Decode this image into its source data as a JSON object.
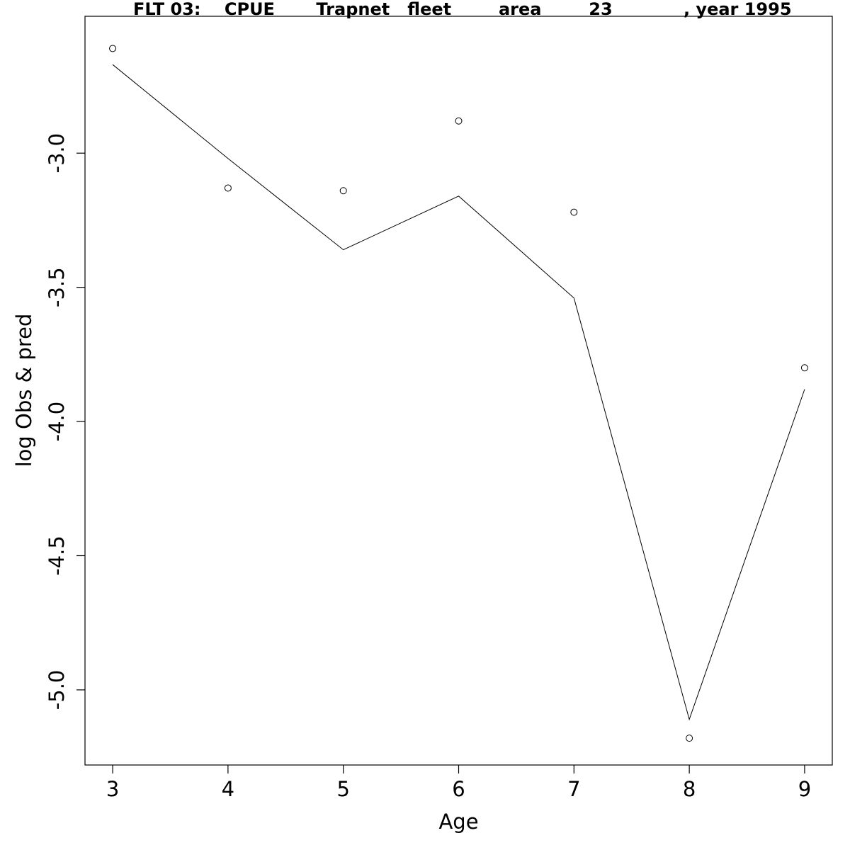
{
  "chart_data": {
    "type": "line",
    "title": "FLT 03:    CPUE       Trapnet   fleet        area        23            , year 1995",
    "xlabel": "Age",
    "ylabel": "log Obs & pred",
    "x": [
      3,
      4,
      5,
      6,
      7,
      8,
      9
    ],
    "x_ticks": [
      "3",
      "4",
      "5",
      "6",
      "7",
      "8",
      "9"
    ],
    "y_ticks": [
      "-3.0",
      "-3.5",
      "-4.0",
      "-4.5",
      "-5.0"
    ],
    "xlim": [
      2.76,
      9.24
    ],
    "ylim": [
      -5.28,
      -2.49
    ],
    "series": [
      {
        "kind": "points",
        "marker": "open-circle",
        "values": [
          -2.61,
          -3.13,
          -3.14,
          -2.88,
          -3.22,
          -5.18,
          -3.8
        ]
      },
      {
        "kind": "line",
        "values": [
          -2.67,
          -3.02,
          -3.36,
          -3.16,
          -3.54,
          -5.11,
          -3.88
        ]
      }
    ],
    "grid": false
  }
}
